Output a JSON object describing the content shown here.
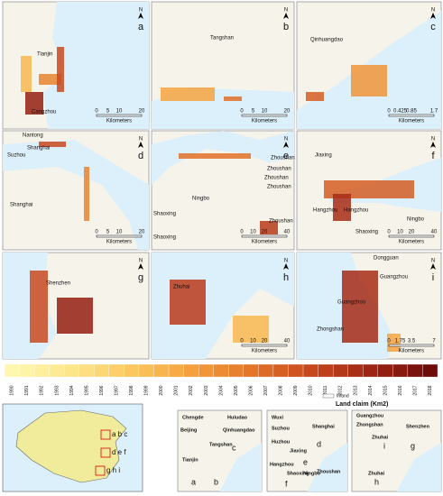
{
  "north": "N",
  "scale_unit": "Kilometers",
  "panels": [
    {
      "letter": "a",
      "places": [
        "Tianjin",
        "Cangzhou"
      ],
      "scale": [
        "0",
        "5",
        "10",
        "20"
      ]
    },
    {
      "letter": "b",
      "places": [
        "Tangshan"
      ],
      "scale": [
        "0",
        "5",
        "10",
        "20"
      ]
    },
    {
      "letter": "c",
      "places": [
        "Qinhuangdao"
      ],
      "scale": [
        "0",
        "0.425",
        "0.85",
        "1.7"
      ]
    },
    {
      "letter": "d",
      "places": [
        "Nantong",
        "Suzhou",
        "Shanghai",
        "Shanghai"
      ],
      "scale": [
        "0",
        "5",
        "10",
        "20"
      ]
    },
    {
      "letter": "e",
      "places": [
        "Zhoushan",
        "Zhoushan",
        "Zhoushan",
        "Zhoushan",
        "Zhoushan",
        "Ningbo",
        "Shaoxing",
        "Shaoxing"
      ],
      "scale": [
        "0",
        "10",
        "20",
        "40"
      ]
    },
    {
      "letter": "f",
      "places": [
        "Jiaxing",
        "Hangzhou",
        "Hangzhou",
        "Shaoxing",
        "Ningbo"
      ],
      "scale": [
        "0",
        "10",
        "20",
        "40"
      ]
    },
    {
      "letter": "g",
      "places": [
        "Shenzhen"
      ],
      "scale": []
    },
    {
      "letter": "h",
      "places": [
        "Zhuhai"
      ],
      "scale": [
        "0",
        "10",
        "20",
        "40"
      ]
    },
    {
      "letter": "i",
      "places": [
        "Dongguan",
        "Guangzhou",
        "Guangzhou",
        "Zhongshan"
      ],
      "scale": [
        "0",
        "1.75",
        "3.5",
        "7"
      ]
    }
  ],
  "legend": {
    "years": [
      "1990",
      "1991",
      "1992",
      "1993",
      "1994",
      "1995",
      "1996",
      "1997",
      "1998",
      "1999",
      "2000",
      "2001",
      "2002",
      "2003",
      "2004",
      "2005",
      "2006",
      "2007",
      "2008",
      "2009",
      "2010",
      "2011",
      "2012",
      "2013",
      "2014",
      "2015",
      "2016",
      "2017",
      "2018"
    ],
    "inland": "Inland",
    "title": "Land claim (Km2)"
  },
  "china_map": {
    "groups": [
      "a b c",
      "d e f",
      "g h i"
    ]
  },
  "insets": [
    {
      "labels": [
        "Chengde",
        "Huludao",
        "Beijing",
        "Qinhuangdao",
        "Tangshan",
        "Tianjin",
        "c",
        "a",
        "b"
      ]
    },
    {
      "labels": [
        "Wuxi",
        "Suzhou",
        "Shanghai",
        "Huzhou",
        "Jiaxing",
        "d",
        "e",
        "Hangzhou",
        "Zhoushan",
        "Shaoxing",
        "Ningbo",
        "f"
      ]
    },
    {
      "labels": [
        "Guangzhou",
        "Zhongshan",
        "Shenzhen",
        "Zhuhai",
        "Zhuhai",
        "i",
        "g",
        "h"
      ]
    }
  ]
}
